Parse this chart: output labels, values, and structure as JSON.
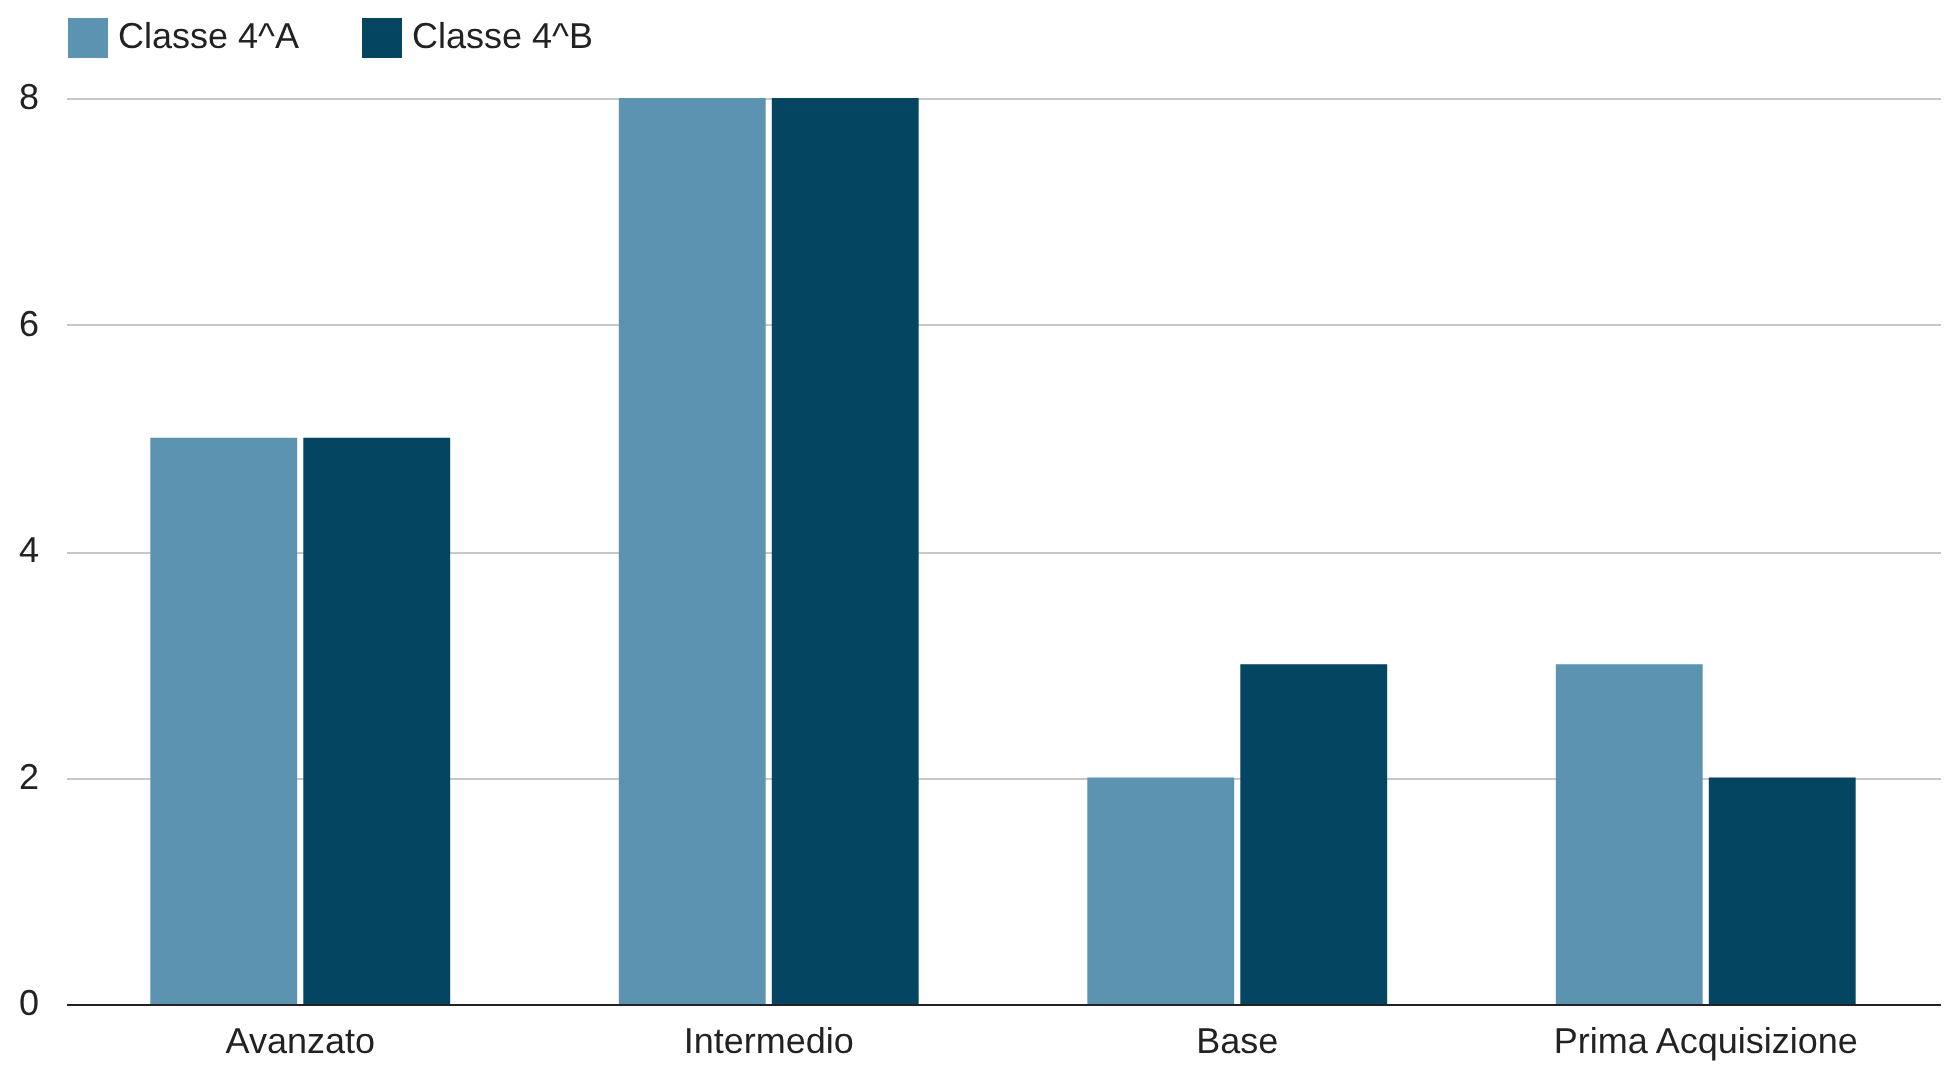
{
  "chart_data": {
    "type": "bar",
    "categories": [
      "Avanzato",
      "Intermedio",
      "Base",
      "Prima Acquisizione"
    ],
    "series": [
      {
        "name": "Classe 4^A",
        "color": "#5b93b0",
        "values": [
          5,
          8,
          2,
          3
        ]
      },
      {
        "name": "Classe 4^B",
        "color": "#044561",
        "values": [
          5,
          8,
          3,
          2
        ]
      }
    ],
    "ylim": [
      0,
      8
    ],
    "yticks": [
      0,
      2,
      4,
      6,
      8
    ],
    "grid": "y",
    "legend": "top"
  }
}
